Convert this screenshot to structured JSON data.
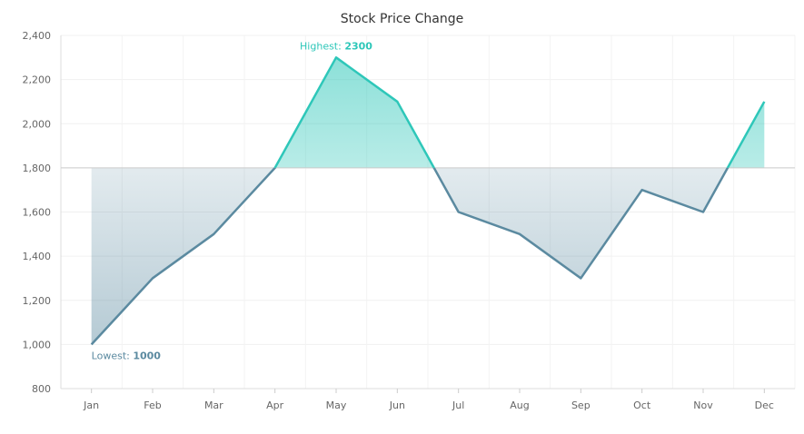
{
  "chart_data": {
    "type": "line",
    "title": "Stock Price Change",
    "categories": [
      "Jan",
      "Feb",
      "Mar",
      "Apr",
      "May",
      "Jun",
      "Jul",
      "Aug",
      "Sep",
      "Oct",
      "Nov",
      "Dec"
    ],
    "values": [
      1000,
      1300,
      1500,
      1800,
      2300,
      2100,
      1600,
      1500,
      1300,
      1700,
      1600,
      2100
    ],
    "ylim": [
      800,
      2400
    ],
    "yticks": [
      "800",
      "1,000",
      "1,200",
      "1,400",
      "1,600",
      "1,800",
      "2,000",
      "2,200",
      "2,400"
    ],
    "threshold": 1800,
    "grid": true,
    "colors": {
      "above": "#2ec7b9",
      "below": "#5b8aa0",
      "threshold_line": "#cccccc"
    },
    "annotations": {
      "highest": {
        "label": "Highest:",
        "value": "2300",
        "category": "May"
      },
      "lowest": {
        "label": "Lowest:",
        "value": "1000",
        "category": "Jan"
      }
    }
  }
}
